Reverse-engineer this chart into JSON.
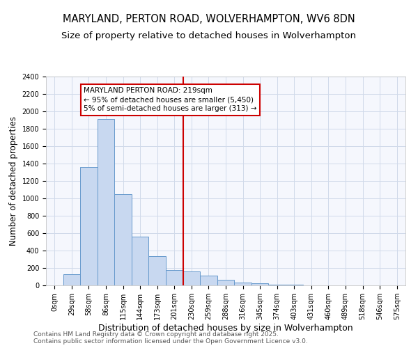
{
  "title": "MARYLAND, PERTON ROAD, WOLVERHAMPTON, WV6 8DN",
  "subtitle": "Size of property relative to detached houses in Wolverhampton",
  "xlabel": "Distribution of detached houses by size in Wolverhampton",
  "ylabel": "Number of detached properties",
  "footer_line1": "Contains HM Land Registry data © Crown copyright and database right 2025.",
  "footer_line2": "Contains public sector information licensed under the Open Government Licence v3.0.",
  "bin_labels": [
    "0sqm",
    "29sqm",
    "58sqm",
    "86sqm",
    "115sqm",
    "144sqm",
    "173sqm",
    "201sqm",
    "230sqm",
    "259sqm",
    "288sqm",
    "316sqm",
    "345sqm",
    "374sqm",
    "403sqm",
    "431sqm",
    "460sqm",
    "489sqm",
    "518sqm",
    "546sqm",
    "575sqm"
  ],
  "bar_heights": [
    0,
    130,
    1360,
    1910,
    1050,
    560,
    340,
    175,
    160,
    110,
    65,
    30,
    25,
    5,
    5,
    0,
    0,
    0,
    0,
    0,
    0
  ],
  "bar_color": "#c8d8f0",
  "bar_edge_color": "#6699cc",
  "grid_color": "#d0daea",
  "background_color": "#ffffff",
  "plot_bg_color": "#f5f7fd",
  "red_line_x": 8.0,
  "annotation_text_line1": "MARYLAND PERTON ROAD: 219sqm",
  "annotation_text_line2": "← 95% of detached houses are smaller (5,450)",
  "annotation_text_line3": "5% of semi-detached houses are larger (313) →",
  "annotation_box_edge": "#cc0000",
  "red_line_color": "#cc0000",
  "ylim": [
    0,
    2400
  ],
  "yticks": [
    0,
    200,
    400,
    600,
    800,
    1000,
    1200,
    1400,
    1600,
    1800,
    2000,
    2200,
    2400
  ],
  "title_fontsize": 10.5,
  "subtitle_fontsize": 9.5,
  "xlabel_fontsize": 9,
  "ylabel_fontsize": 8.5,
  "tick_fontsize": 7,
  "annotation_fontsize": 7.5,
  "footer_fontsize": 6.5
}
